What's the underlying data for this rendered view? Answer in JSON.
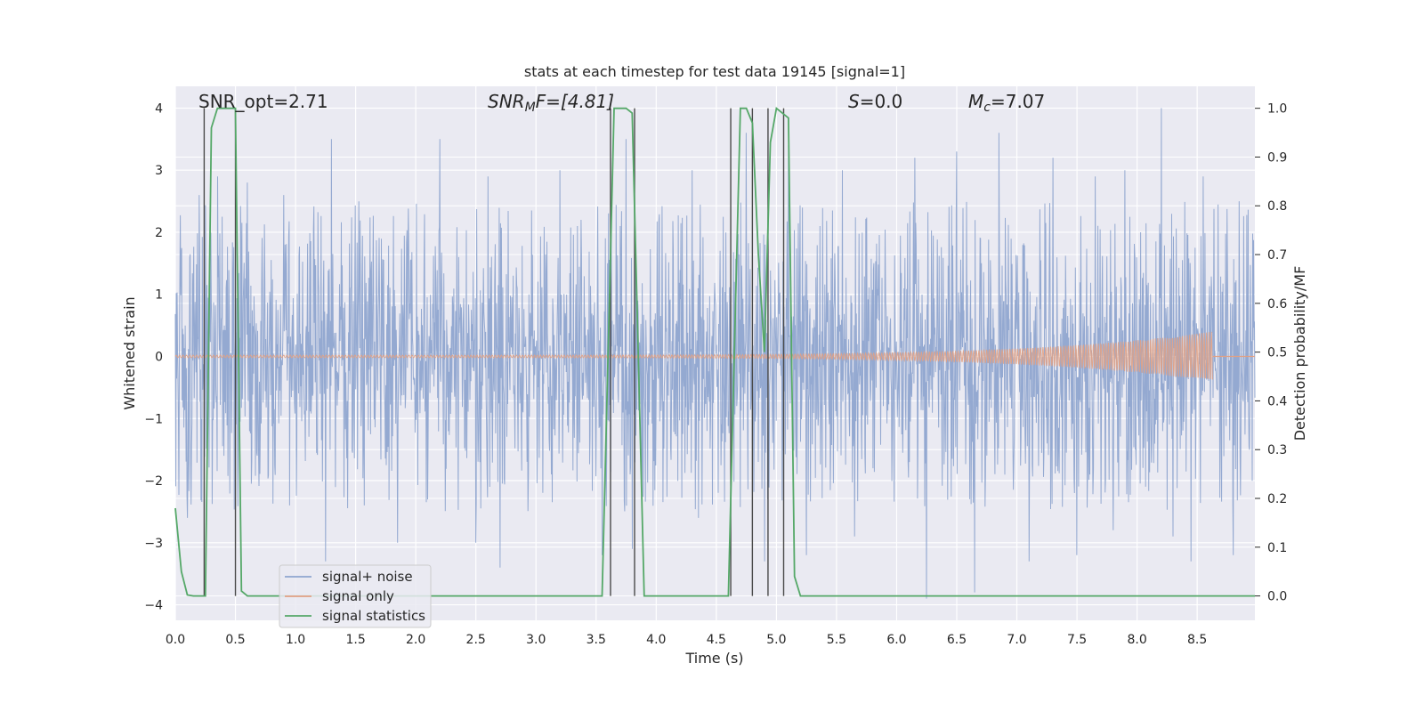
{
  "chart_data": {
    "type": "line",
    "title": "stats at each timestep for test data 19145 [signal=1]",
    "xlabel": "Time (s)",
    "ylabel": "Whitened strain",
    "y2label": "Detection probability/MF",
    "xlim": [
      0.0,
      8.98
    ],
    "ylim": [
      -4.25,
      4.35
    ],
    "y2lim": [
      -0.05,
      1.045
    ],
    "grid": true,
    "legend_position": "lower-left",
    "x_ticks": [
      "0.0",
      "0.5",
      "1.0",
      "1.5",
      "2.0",
      "2.5",
      "3.0",
      "3.5",
      "4.0",
      "4.5",
      "5.0",
      "5.5",
      "6.0",
      "6.5",
      "7.0",
      "7.5",
      "8.0",
      "8.5"
    ],
    "y_ticks": [
      "−4",
      "−3",
      "−2",
      "−1",
      "0",
      "1",
      "2",
      "3",
      "4"
    ],
    "y2_ticks": [
      "0.0",
      "0.1",
      "0.2",
      "0.3",
      "0.4",
      "0.5",
      "0.6",
      "0.7",
      "0.8",
      "0.9",
      "1.0"
    ],
    "annotations": {
      "snr_opt": "SNR_opt=2.71",
      "snr_mf_main": "SNR",
      "snr_mf_sub": "M",
      "snr_mf_rest": "F=[4.81]",
      "s_main": "S",
      "s_rest": "=0.0",
      "mc_main": "M",
      "mc_sub": "c",
      "mc_rest": "=7.07"
    },
    "series": [
      {
        "name": "signal+ noise",
        "color": "#8fa5cf",
        "kind": "noise",
        "t_range": [
          0.0,
          8.98
        ],
        "envelope": 1.6,
        "spikes": [
          [
            0.2,
            2.6
          ],
          [
            0.35,
            2.9
          ],
          [
            0.6,
            2.8
          ],
          [
            0.9,
            2.6
          ],
          [
            1.3,
            3.5
          ],
          [
            1.85,
            3.1
          ],
          [
            2.2,
            3.5
          ],
          [
            2.6,
            2.9
          ],
          [
            3.2,
            3.0
          ],
          [
            3.75,
            3.5
          ],
          [
            4.3,
            3.0
          ],
          [
            4.75,
            3.6
          ],
          [
            5.1,
            3.4
          ],
          [
            5.55,
            3.0
          ],
          [
            6.15,
            3.2
          ],
          [
            6.5,
            3.3
          ],
          [
            6.85,
            3.6
          ],
          [
            7.3,
            3.2
          ],
          [
            7.65,
            2.9
          ],
          [
            7.9,
            3.0
          ],
          [
            8.2,
            4.0
          ],
          [
            8.55,
            2.9
          ],
          [
            8.85,
            2.5
          ],
          [
            0.1,
            -2.6
          ],
          [
            0.95,
            -2.4
          ],
          [
            1.25,
            -3.3
          ],
          [
            1.85,
            -3.0
          ],
          [
            2.5,
            -3.0
          ],
          [
            2.7,
            -3.4
          ],
          [
            3.55,
            -3.2
          ],
          [
            3.8,
            -3.1
          ],
          [
            4.35,
            -2.6
          ],
          [
            4.9,
            -3.3
          ],
          [
            5.25,
            -3.2
          ],
          [
            5.65,
            -2.9
          ],
          [
            6.25,
            -3.9
          ],
          [
            6.65,
            -3.8
          ],
          [
            7.1,
            -3.3
          ],
          [
            7.5,
            -3.2
          ],
          [
            7.8,
            -2.8
          ],
          [
            8.3,
            -2.9
          ],
          [
            8.45,
            -3.3
          ],
          [
            8.8,
            -3.2
          ]
        ]
      },
      {
        "name": "signal only",
        "color": "#e1a184",
        "kind": "chirp",
        "t_range": [
          0.0,
          8.63
        ],
        "amp_start": 0.02,
        "amp_end": 0.4
      },
      {
        "name": "signal statistics",
        "color": "#55a868",
        "kind": "line",
        "axis": "right",
        "x": [
          0.0,
          0.05,
          0.1,
          0.15,
          0.2,
          0.25,
          0.3,
          0.35,
          0.4,
          0.45,
          0.5,
          0.55,
          0.6,
          0.65,
          3.5,
          3.55,
          3.6,
          3.65,
          3.7,
          3.75,
          3.8,
          3.85,
          3.9,
          3.95,
          4.55,
          4.6,
          4.65,
          4.7,
          4.75,
          4.8,
          4.85,
          4.9,
          4.95,
          5.0,
          5.05,
          5.1,
          5.15,
          5.2,
          5.25,
          8.98
        ],
        "values": [
          0.18,
          0.05,
          0.002,
          0.0,
          0.0,
          0.0,
          0.96,
          1.0,
          1.0,
          1.0,
          1.0,
          0.01,
          0.0,
          0.0,
          0.0,
          0.0,
          0.5,
          1.0,
          1.0,
          1.0,
          0.99,
          0.5,
          0.0,
          0.0,
          0.0,
          0.0,
          0.5,
          1.0,
          1.0,
          0.97,
          0.7,
          0.5,
          0.93,
          1.0,
          0.99,
          0.98,
          0.04,
          0.0,
          0.0,
          0.0
        ]
      }
    ],
    "vlines": [
      0.24,
      0.5,
      3.62,
      3.82,
      4.62,
      4.8,
      4.93,
      5.06
    ],
    "vline_color": "#4a4a4a"
  }
}
